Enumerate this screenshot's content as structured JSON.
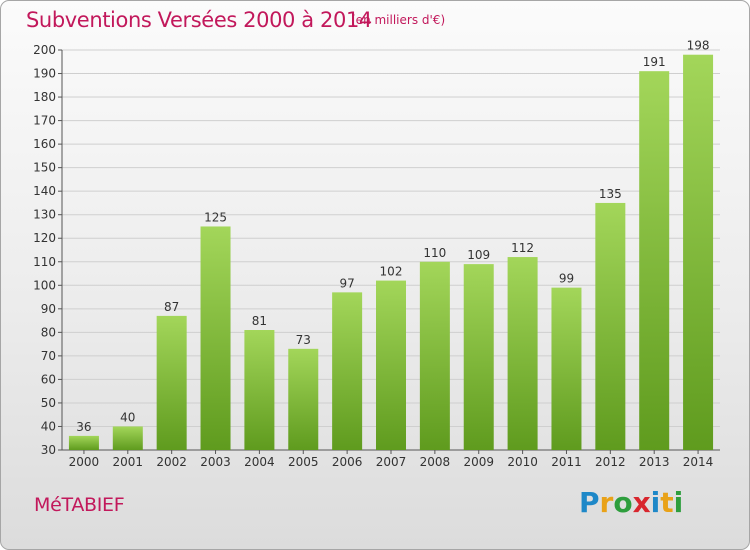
{
  "title": "Subventions Versées 2000 à 2014",
  "subtitle": "(en milliers d'€)",
  "commune": "MéTABIEF",
  "brand": {
    "text": "Proxiti",
    "letters": [
      {
        "ch": "P",
        "color": "#1e88c8"
      },
      {
        "ch": "r",
        "color": "#e9a218"
      },
      {
        "ch": "o",
        "color": "#2e9e3d"
      },
      {
        "ch": "x",
        "color": "#d8262e"
      },
      {
        "ch": "i",
        "color": "#1e88c8"
      },
      {
        "ch": "t",
        "color": "#e9a218"
      },
      {
        "ch": "i",
        "color": "#2e9e3d"
      }
    ]
  },
  "colors": {
    "bar_top": "#a3d65a",
    "bar_bottom": "#5f9b1e",
    "grid": "#cfcfcf",
    "title": "#c2185b"
  },
  "chart_data": {
    "type": "bar",
    "categories": [
      "2000",
      "2001",
      "2002",
      "2003",
      "2004",
      "2005",
      "2006",
      "2007",
      "2008",
      "2009",
      "2010",
      "2011",
      "2012",
      "2013",
      "2014"
    ],
    "values": [
      36,
      40,
      87,
      125,
      81,
      73,
      97,
      102,
      110,
      109,
      112,
      99,
      135,
      191,
      198
    ],
    "ylim": [
      30,
      200
    ],
    "yticks": [
      30,
      40,
      50,
      60,
      70,
      80,
      90,
      100,
      110,
      120,
      130,
      140,
      150,
      160,
      170,
      180,
      190,
      200
    ],
    "grid": true,
    "xlabel": "",
    "ylabel": ""
  }
}
